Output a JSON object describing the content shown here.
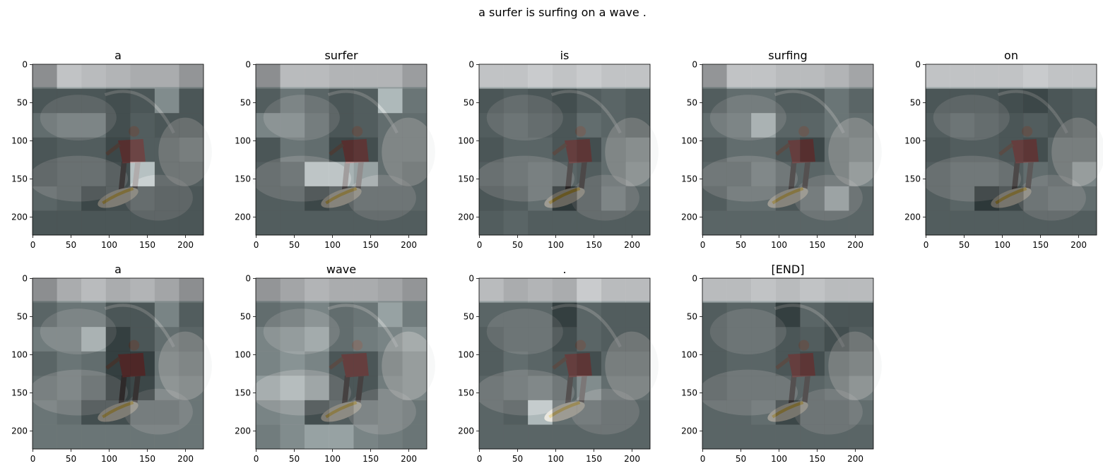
{
  "chart_data": {
    "type": "heatmap",
    "title": "a surfer is surfing on a wave .",
    "xlim": [
      0,
      224
    ],
    "ylim": [
      224,
      0
    ],
    "xticks": [
      0,
      50,
      100,
      150,
      200
    ],
    "yticks": [
      0,
      50,
      100,
      150,
      200
    ],
    "grid": false,
    "grid_cells": 7,
    "colormap": "gray",
    "panels": [
      {
        "title": "a",
        "attention": [
          [
            0.5,
            0.85,
            0.8,
            0.75,
            0.7,
            0.7,
            0.55
          ],
          [
            0.3,
            0.3,
            0.3,
            0.25,
            0.3,
            0.65,
            0.3
          ],
          [
            0.45,
            0.5,
            0.5,
            0.25,
            0.35,
            0.3,
            0.3
          ],
          [
            0.3,
            0.35,
            0.35,
            0.2,
            0.35,
            0.35,
            0.4
          ],
          [
            0.3,
            0.35,
            0.35,
            0.25,
            1,
            0.35,
            0.35
          ],
          [
            0.4,
            0.35,
            0.2,
            0.25,
            0.35,
            0.3,
            0.3
          ],
          [
            0.3,
            0.3,
            0.3,
            0.3,
            0.3,
            0.3,
            0.3
          ]
        ]
      },
      {
        "title": "surfer",
        "attention": [
          [
            0.5,
            0.8,
            0.8,
            0.75,
            0.75,
            0.75,
            0.6
          ],
          [
            0.35,
            0.5,
            0.4,
            0.3,
            0.35,
            0.95,
            0.5
          ],
          [
            0.6,
            0.6,
            0.45,
            0.3,
            0.35,
            0.45,
            0.45
          ],
          [
            0.3,
            0.5,
            0.45,
            0.2,
            0.25,
            0.45,
            0.45
          ],
          [
            0.35,
            0.4,
            0.9,
            0.9,
            0.8,
            0.45,
            0.4
          ],
          [
            0.35,
            0.35,
            0.2,
            0.3,
            0.4,
            0.4,
            0.4
          ],
          [
            0.35,
            0.35,
            0.35,
            0.35,
            0.35,
            0.35,
            0.35
          ]
        ]
      },
      {
        "title": "is",
        "attention": [
          [
            0.85,
            0.85,
            0.9,
            0.85,
            0.9,
            0.85,
            0.85
          ],
          [
            0.3,
            0.35,
            0.3,
            0.25,
            0.35,
            0.4,
            0.35
          ],
          [
            0.35,
            0.4,
            0.35,
            0.3,
            0.45,
            0.4,
            0.35
          ],
          [
            0.3,
            0.4,
            0.4,
            0.3,
            0.25,
            0.45,
            0.5
          ],
          [
            0.35,
            0.4,
            0.45,
            0.4,
            0.35,
            0.45,
            0.55
          ],
          [
            0.3,
            0.35,
            0.45,
            0.1,
            0.35,
            0.5,
            0.4
          ],
          [
            0.35,
            0.4,
            0.35,
            0.35,
            0.35,
            0.35,
            0.35
          ]
        ]
      },
      {
        "title": "surfing",
        "attention": [
          [
            0.55,
            0.85,
            0.85,
            0.8,
            0.8,
            0.75,
            0.65
          ],
          [
            0.35,
            0.45,
            0.45,
            0.35,
            0.35,
            0.5,
            0.4
          ],
          [
            0.45,
            0.5,
            0.8,
            0.4,
            0.4,
            0.5,
            0.45
          ],
          [
            0.35,
            0.45,
            0.45,
            0.3,
            0.2,
            0.45,
            0.5
          ],
          [
            0.4,
            0.4,
            0.5,
            0.4,
            0.4,
            0.45,
            0.6
          ],
          [
            0.35,
            0.45,
            0.45,
            0.3,
            0.45,
            0.7,
            0.4
          ],
          [
            0.4,
            0.4,
            0.4,
            0.4,
            0.4,
            0.4,
            0.4
          ]
        ]
      },
      {
        "title": "on",
        "attention": [
          [
            0.85,
            0.85,
            0.85,
            0.85,
            0.9,
            0.85,
            0.85
          ],
          [
            0.3,
            0.3,
            0.3,
            0.25,
            0.2,
            0.3,
            0.35
          ],
          [
            0.35,
            0.4,
            0.35,
            0.3,
            0.35,
            0.3,
            0.35
          ],
          [
            0.3,
            0.35,
            0.35,
            0.3,
            0.25,
            0.4,
            0.4
          ],
          [
            0.35,
            0.4,
            0.4,
            0.35,
            0.45,
            0.4,
            0.6
          ],
          [
            0.35,
            0.4,
            0.1,
            0.2,
            0.4,
            0.45,
            0.45
          ],
          [
            0.35,
            0.35,
            0.35,
            0.35,
            0.35,
            0.35,
            0.35
          ]
        ]
      },
      {
        "title": "a",
        "attention": [
          [
            0.5,
            0.7,
            0.8,
            0.7,
            0.75,
            0.65,
            0.5
          ],
          [
            0.4,
            0.5,
            0.5,
            0.3,
            0.3,
            0.6,
            0.35
          ],
          [
            0.55,
            0.55,
            0.8,
            0.15,
            0.3,
            0.45,
            0.4
          ],
          [
            0.4,
            0.5,
            0.45,
            0.15,
            0.15,
            0.5,
            0.45
          ],
          [
            0.45,
            0.5,
            0.4,
            0.15,
            0.2,
            0.55,
            0.5
          ],
          [
            0.5,
            0.45,
            0.25,
            0.25,
            0.45,
            0.45,
            0.5
          ],
          [
            0.5,
            0.5,
            0.5,
            0.5,
            0.5,
            0.5,
            0.5
          ]
        ]
      },
      {
        "title": "wave",
        "attention": [
          [
            0.55,
            0.65,
            0.75,
            0.7,
            0.7,
            0.65,
            0.55
          ],
          [
            0.45,
            0.5,
            0.6,
            0.45,
            0.5,
            0.8,
            0.55
          ],
          [
            0.6,
            0.65,
            0.75,
            0.45,
            0.55,
            0.6,
            0.7
          ],
          [
            0.6,
            0.7,
            0.6,
            0.3,
            0.3,
            0.5,
            0.6
          ],
          [
            0.75,
            0.85,
            0.7,
            0.3,
            0.3,
            0.55,
            0.6
          ],
          [
            0.6,
            0.65,
            0.25,
            0.35,
            0.5,
            0.55,
            0.5
          ],
          [
            0.55,
            0.65,
            0.8,
            0.8,
            0.6,
            0.55,
            0.5
          ]
        ]
      },
      {
        "title": ".",
        "attention": [
          [
            0.8,
            0.7,
            0.75,
            0.7,
            0.9,
            0.8,
            0.8
          ],
          [
            0.4,
            0.4,
            0.4,
            0.15,
            0.4,
            0.35,
            0.35
          ],
          [
            0.35,
            0.4,
            0.4,
            0.25,
            0.4,
            0.35,
            0.35
          ],
          [
            0.35,
            0.45,
            0.4,
            0.3,
            0.25,
            0.4,
            0.4
          ],
          [
            0.4,
            0.45,
            0.5,
            0.4,
            0.65,
            0.45,
            0.45
          ],
          [
            0.4,
            0.35,
            0.95,
            0.45,
            0.45,
            0.4,
            0.4
          ],
          [
            0.4,
            0.4,
            0.4,
            0.4,
            0.4,
            0.4,
            0.4
          ]
        ]
      },
      {
        "title": "[END]",
        "attention": [
          [
            0.8,
            0.8,
            0.85,
            0.8,
            0.85,
            0.8,
            0.8
          ],
          [
            0.35,
            0.4,
            0.4,
            0.15,
            0.4,
            0.3,
            0.3
          ],
          [
            0.35,
            0.4,
            0.4,
            0.3,
            0.35,
            0.25,
            0.35
          ],
          [
            0.35,
            0.4,
            0.4,
            0.3,
            0.25,
            0.4,
            0.45
          ],
          [
            0.35,
            0.4,
            0.4,
            0.4,
            0.4,
            0.45,
            0.55
          ],
          [
            0.4,
            0.4,
            0.45,
            0.2,
            0.4,
            0.4,
            0.45
          ],
          [
            0.4,
            0.4,
            0.4,
            0.4,
            0.4,
            0.4,
            0.4
          ]
        ]
      }
    ]
  }
}
